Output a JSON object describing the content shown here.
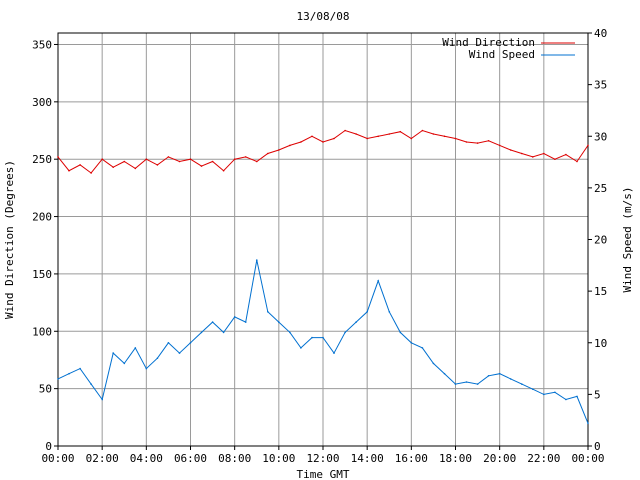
{
  "chart_data": {
    "type": "line",
    "title": "13/08/08",
    "xlabel": "Time GMT",
    "ylabel_left": "Wind Direction (Degrees)",
    "ylabel_right": "Wind Speed (m/s)",
    "x_tick_labels": [
      "00:00",
      "02:00",
      "04:00",
      "06:00",
      "08:00",
      "10:00",
      "12:00",
      "14:00",
      "16:00",
      "18:00",
      "20:00",
      "22:00",
      "00:00"
    ],
    "y_left_ticks": [
      "0",
      "50",
      "100",
      "150",
      "200",
      "250",
      "300",
      "350"
    ],
    "y_right_ticks": [
      "0",
      "5",
      "10",
      "15",
      "20",
      "25",
      "30",
      "35",
      "40"
    ],
    "ylim_left": [
      0,
      360
    ],
    "ylim_right": [
      0,
      40
    ],
    "xlim_hours": [
      0,
      24
    ],
    "grid": true,
    "legend_position": "top-right",
    "series": [
      {
        "name": "Wind Direction",
        "axis": "left",
        "color": "#dd0000",
        "x_hours": [
          0,
          0.5,
          1,
          1.5,
          2,
          2.5,
          3,
          3.5,
          4,
          4.5,
          5,
          5.5,
          6,
          6.5,
          7,
          7.5,
          8,
          8.5,
          9,
          9.5,
          10,
          10.5,
          11,
          11.5,
          12,
          12.5,
          13,
          13.5,
          14,
          14.5,
          15,
          15.5,
          16,
          16.5,
          17,
          17.5,
          18,
          18.5,
          19,
          19.5,
          20,
          20.5,
          21,
          21.5,
          22,
          22.5,
          23,
          23.5,
          24
        ],
        "values": [
          252,
          240,
          245,
          238,
          250,
          243,
          248,
          242,
          250,
          245,
          252,
          248,
          250,
          244,
          248,
          240,
          250,
          252,
          248,
          255,
          258,
          262,
          265,
          270,
          265,
          268,
          275,
          272,
          268,
          270,
          272,
          274,
          268,
          275,
          272,
          270,
          268,
          265,
          264,
          266,
          262,
          258,
          255,
          252,
          255,
          250,
          254,
          248,
          262
        ]
      },
      {
        "name": "Wind Speed",
        "axis": "right",
        "color": "#0070d0",
        "x_hours": [
          0,
          0.5,
          1,
          1.5,
          2,
          2.5,
          3,
          3.5,
          4,
          4.5,
          5,
          5.5,
          6,
          6.5,
          7,
          7.5,
          8,
          8.5,
          9,
          9.5,
          10,
          10.5,
          11,
          11.5,
          12,
          12.5,
          13,
          13.5,
          14,
          14.5,
          15,
          15.5,
          16,
          16.5,
          17,
          17.5,
          18,
          18.5,
          19,
          19.5,
          20,
          20.5,
          21,
          21.5,
          22,
          22.5,
          23,
          23.5,
          24
        ],
        "values": [
          6.5,
          7,
          7.5,
          6,
          4.5,
          9,
          8,
          9.5,
          7.5,
          8.5,
          10,
          9,
          10,
          11,
          12,
          11,
          12.5,
          12,
          18,
          13,
          12,
          11,
          9.5,
          10.5,
          10.5,
          9,
          11,
          12,
          13,
          16,
          13,
          11,
          10,
          9.5,
          8,
          7,
          6,
          6.2,
          6,
          6.8,
          7,
          6.5,
          6,
          5.5,
          5,
          5.2,
          4.5,
          4.8,
          2.2
        ]
      }
    ]
  }
}
